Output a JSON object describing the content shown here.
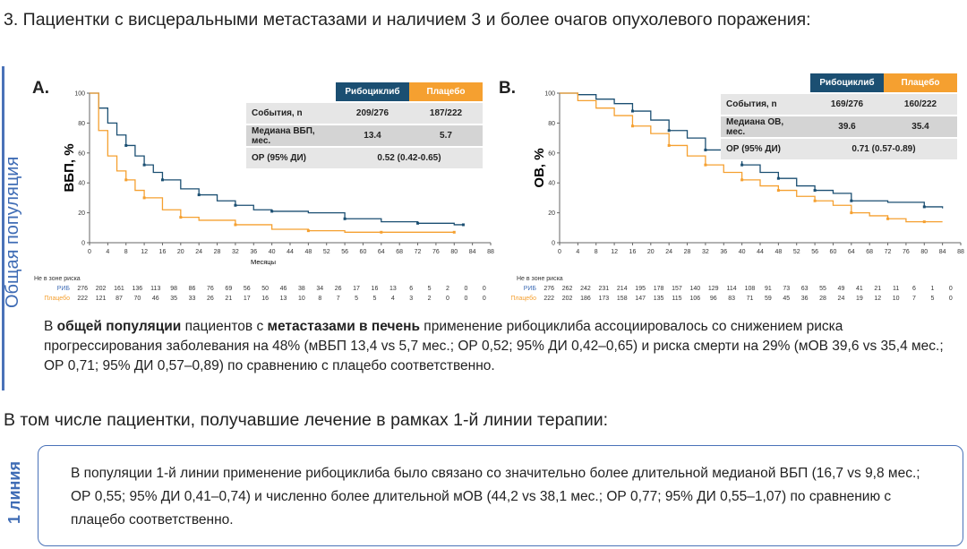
{
  "heading": "3. Пациентки с висцеральными метастазами и наличием 3 и более очагов опухолевого поражения:",
  "panel_label": "Общая популяция",
  "colors": {
    "ribo": "#1b4f72",
    "placebo": "#f5a030",
    "accent": "#4a72b8"
  },
  "chart_data": [
    {
      "type": "line",
      "letter": "A.",
      "ylabel": "ВБП, %",
      "xlabel": "Месяцы",
      "xlim": [
        0,
        88
      ],
      "ylim": [
        0,
        100
      ],
      "xticks": [
        0,
        4,
        8,
        12,
        16,
        20,
        24,
        28,
        32,
        36,
        40,
        44,
        48,
        52,
        56,
        60,
        64,
        68,
        72,
        76,
        80,
        84,
        88
      ],
      "yticks": [
        0,
        20,
        40,
        60,
        80,
        100
      ],
      "series": [
        {
          "name": "Рибоциклиб",
          "x": [
            0,
            2,
            4,
            6,
            8,
            10,
            12,
            14,
            16,
            20,
            24,
            28,
            32,
            36,
            40,
            48,
            56,
            64,
            72,
            80,
            82
          ],
          "y": [
            100,
            90,
            80,
            72,
            65,
            58,
            52,
            47,
            42,
            36,
            32,
            28,
            25,
            22,
            21,
            20,
            16,
            14,
            13,
            12,
            12
          ]
        },
        {
          "name": "Плацебо",
          "x": [
            0,
            2,
            4,
            6,
            8,
            10,
            12,
            16,
            20,
            24,
            32,
            40,
            48,
            56,
            64,
            72,
            80
          ],
          "y": [
            100,
            75,
            58,
            48,
            42,
            35,
            30,
            22,
            17,
            15,
            12,
            9,
            8,
            7,
            7,
            7,
            7
          ]
        }
      ],
      "table": {
        "headers": [
          "Рибоциклиб",
          "Плацебо"
        ],
        "rows": [
          {
            "label": "События, n",
            "ribo": "209/276",
            "placebo": "187/222"
          },
          {
            "label": "Медиана ВБП, мес.",
            "ribo": "13.4",
            "placebo": "5.7"
          }
        ],
        "hr_label": "ОР (95% ДИ)",
        "hr": "0.52 (0.42-0.65)"
      },
      "risk": {
        "title": "Не в зоне риска",
        "ribo_label": "РИБ",
        "placebo_label": "Плацебо",
        "ribo": [
          "276",
          "202",
          "161",
          "136",
          "113",
          "98",
          "86",
          "76",
          "69",
          "56",
          "50",
          "46",
          "38",
          "34",
          "26",
          "17",
          "16",
          "13",
          "6",
          "5",
          "2",
          "0",
          "0"
        ],
        "placebo": [
          "222",
          "121",
          "87",
          "70",
          "46",
          "35",
          "33",
          "26",
          "21",
          "17",
          "16",
          "13",
          "10",
          "8",
          "7",
          "5",
          "5",
          "4",
          "3",
          "2",
          "0",
          "0",
          "0"
        ]
      }
    },
    {
      "type": "line",
      "letter": "B.",
      "ylabel": "ОВ, %",
      "xlabel": "",
      "xlim": [
        0,
        88
      ],
      "ylim": [
        0,
        100
      ],
      "xticks": [
        0,
        4,
        8,
        12,
        16,
        20,
        24,
        28,
        32,
        36,
        40,
        44,
        48,
        52,
        56,
        60,
        64,
        68,
        72,
        76,
        80,
        84,
        88
      ],
      "yticks": [
        0,
        20,
        40,
        60,
        80,
        100
      ],
      "series": [
        {
          "name": "Рибоциклиб",
          "x": [
            0,
            4,
            8,
            12,
            16,
            20,
            24,
            28,
            32,
            36,
            40,
            44,
            48,
            52,
            56,
            60,
            64,
            72,
            80,
            84
          ],
          "y": [
            100,
            99,
            96,
            93,
            88,
            82,
            75,
            70,
            62,
            57,
            52,
            47,
            43,
            38,
            35,
            33,
            28,
            27,
            24,
            23
          ]
        },
        {
          "name": "Плацебо",
          "x": [
            0,
            4,
            8,
            12,
            16,
            20,
            24,
            28,
            32,
            36,
            40,
            44,
            48,
            52,
            56,
            60,
            64,
            68,
            72,
            76,
            80,
            84
          ],
          "y": [
            100,
            95,
            90,
            85,
            78,
            73,
            65,
            58,
            52,
            47,
            42,
            38,
            35,
            31,
            28,
            25,
            20,
            18,
            16,
            14,
            14,
            14
          ]
        }
      ],
      "table": {
        "headers": [
          "Рибоциклиб",
          "Плацебо"
        ],
        "rows": [
          {
            "label": "События, n",
            "ribo": "169/276",
            "placebo": "160/222"
          },
          {
            "label": "Медиана ОВ, мес.",
            "ribo": "39.6",
            "placebo": "35.4"
          }
        ],
        "hr_label": "ОР (95% ДИ)",
        "hr": "0.71 (0.57-0.89)"
      },
      "risk": {
        "title": "Не в зоне риска",
        "ribo_label": "РИБ",
        "placebo_label": "Плацебо",
        "ribo": [
          "276",
          "262",
          "242",
          "231",
          "214",
          "195",
          "178",
          "157",
          "140",
          "129",
          "114",
          "108",
          "91",
          "73",
          "63",
          "55",
          "49",
          "41",
          "21",
          "11",
          "6",
          "1",
          "0"
        ],
        "placebo": [
          "222",
          "202",
          "186",
          "173",
          "158",
          "147",
          "135",
          "115",
          "106",
          "96",
          "83",
          "71",
          "59",
          "45",
          "36",
          "28",
          "24",
          "19",
          "12",
          "10",
          "7",
          "5",
          "0"
        ]
      }
    }
  ],
  "summary": {
    "p1": "В ",
    "b1": "общей популяции",
    "p2": " пациентов с ",
    "b2": "метастазами в печень",
    "p3": " применение рибоциклиба ассоциировалось со снижением риска прогрессирования заболевания на 48% (мВБП 13,4 vs 5,7 мес.; ОР 0,52; 95% ДИ 0,42–0,65) и риска смерти на 29% (мОВ 39,6 vs 35,4 мес.; ОР 0,71; 95% ДИ 0,57–0,89) по сравнению с плацебо соответственно."
  },
  "subheading": "В том числе пациентки, получавшие лечение в рамках 1-й линии терапии:",
  "first_line": {
    "label": "1 линия",
    "text": "В популяции 1-й линии применение рибоциклиба было связано со значительно более длительной медианой ВБП (16,7 vs 9,8 мес.; ОР 0,55; 95% ДИ 0,41–0,74) и численно более длительной мОВ (44,2 vs 38,1 мес.; ОР 0,77; 95% ДИ 0,55–1,07) по сравнению с плацебо соответственно."
  }
}
